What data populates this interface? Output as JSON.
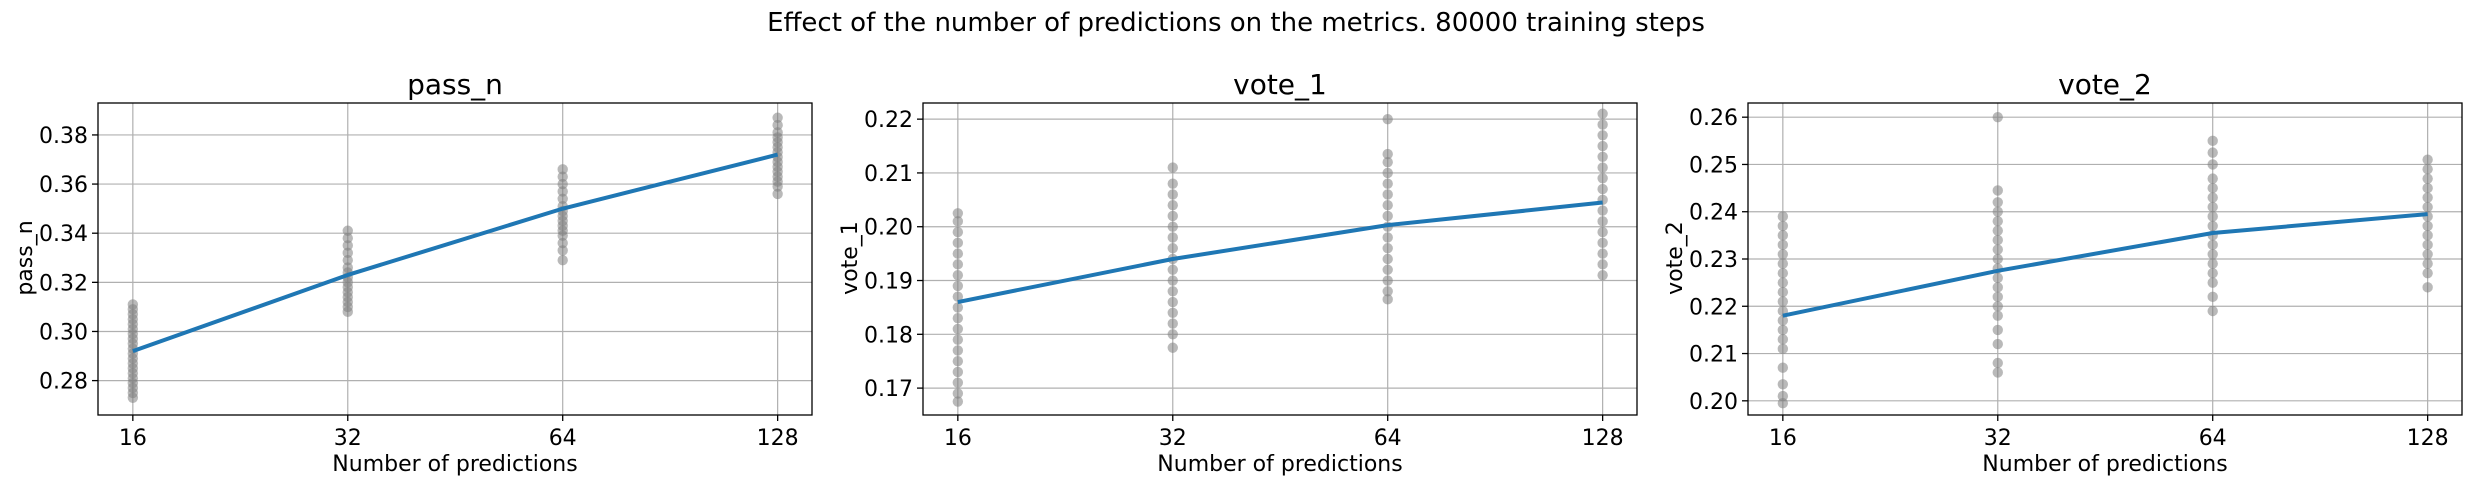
{
  "figure": {
    "suptitle": "Effect of the number of predictions on the metrics. 80000 training steps"
  },
  "colors": {
    "line": "#1f77b4",
    "points": "#808080",
    "grid": "#b0b0b0",
    "axes": "#000000"
  },
  "chart_data": [
    {
      "type": "line",
      "title": "pass_n",
      "xlabel": "Number of predictions",
      "ylabel": "pass_n",
      "x_scale": "log2",
      "x": [
        16,
        32,
        64,
        128
      ],
      "xtick_labels": [
        "16",
        "32",
        "64",
        "128"
      ],
      "xlim": [
        14.3,
        143
      ],
      "ylim": [
        0.266,
        0.393
      ],
      "yticks": [
        0.28,
        0.3,
        0.32,
        0.34,
        0.36,
        0.38
      ],
      "ytick_labels": [
        "0.28",
        "0.30",
        "0.32",
        "0.34",
        "0.36",
        "0.38"
      ],
      "grid": true,
      "series": [
        {
          "kind": "line",
          "values": [
            0.292,
            0.323,
            0.35,
            0.372
          ]
        },
        {
          "kind": "scatter",
          "points": [
            [
              16,
              0.311
            ],
            [
              16,
              0.309
            ],
            [
              16,
              0.307
            ],
            [
              16,
              0.305
            ],
            [
              16,
              0.303
            ],
            [
              16,
              0.301
            ],
            [
              16,
              0.299
            ],
            [
              16,
              0.297
            ],
            [
              16,
              0.295
            ],
            [
              16,
              0.293
            ],
            [
              16,
              0.291
            ],
            [
              16,
              0.289
            ],
            [
              16,
              0.287
            ],
            [
              16,
              0.285
            ],
            [
              16,
              0.283
            ],
            [
              16,
              0.281
            ],
            [
              16,
              0.279
            ],
            [
              16,
              0.277
            ],
            [
              16,
              0.275
            ],
            [
              16,
              0.273
            ],
            [
              32,
              0.341
            ],
            [
              32,
              0.338
            ],
            [
              32,
              0.335
            ],
            [
              32,
              0.332
            ],
            [
              32,
              0.329
            ],
            [
              32,
              0.326
            ],
            [
              32,
              0.324
            ],
            [
              32,
              0.322
            ],
            [
              32,
              0.32
            ],
            [
              32,
              0.318
            ],
            [
              32,
              0.316
            ],
            [
              32,
              0.314
            ],
            [
              32,
              0.312
            ],
            [
              32,
              0.31
            ],
            [
              32,
              0.308
            ],
            [
              64,
              0.366
            ],
            [
              64,
              0.363
            ],
            [
              64,
              0.36
            ],
            [
              64,
              0.357
            ],
            [
              64,
              0.354
            ],
            [
              64,
              0.351
            ],
            [
              64,
              0.349
            ],
            [
              64,
              0.347
            ],
            [
              64,
              0.345
            ],
            [
              64,
              0.343
            ],
            [
              64,
              0.341
            ],
            [
              64,
              0.339
            ],
            [
              64,
              0.336
            ],
            [
              64,
              0.333
            ],
            [
              64,
              0.329
            ],
            [
              128,
              0.387
            ],
            [
              128,
              0.384
            ],
            [
              128,
              0.381
            ],
            [
              128,
              0.379
            ],
            [
              128,
              0.377
            ],
            [
              128,
              0.375
            ],
            [
              128,
              0.373
            ],
            [
              128,
              0.371
            ],
            [
              128,
              0.369
            ],
            [
              128,
              0.367
            ],
            [
              128,
              0.365
            ],
            [
              128,
              0.363
            ],
            [
              128,
              0.361
            ],
            [
              128,
              0.359
            ],
            [
              128,
              0.356
            ]
          ]
        }
      ]
    },
    {
      "type": "line",
      "title": "vote_1",
      "xlabel": "Number of predictions",
      "ylabel": "vote_1",
      "x_scale": "log2",
      "x": [
        16,
        32,
        64,
        128
      ],
      "xtick_labels": [
        "16",
        "32",
        "64",
        "128"
      ],
      "xlim": [
        14.3,
        143
      ],
      "ylim": [
        0.165,
        0.223
      ],
      "yticks": [
        0.17,
        0.18,
        0.19,
        0.2,
        0.21,
        0.22
      ],
      "ytick_labels": [
        "0.17",
        "0.18",
        "0.19",
        "0.20",
        "0.21",
        "0.22"
      ],
      "grid": true,
      "series": [
        {
          "kind": "line",
          "values": [
            0.186,
            0.194,
            0.2003,
            0.2045
          ]
        },
        {
          "kind": "scatter",
          "points": [
            [
              16,
              0.2025
            ],
            [
              16,
              0.201
            ],
            [
              16,
              0.199
            ],
            [
              16,
              0.197
            ],
            [
              16,
              0.195
            ],
            [
              16,
              0.193
            ],
            [
              16,
              0.191
            ],
            [
              16,
              0.189
            ],
            [
              16,
              0.187
            ],
            [
              16,
              0.185
            ],
            [
              16,
              0.183
            ],
            [
              16,
              0.181
            ],
            [
              16,
              0.179
            ],
            [
              16,
              0.177
            ],
            [
              16,
              0.175
            ],
            [
              16,
              0.173
            ],
            [
              16,
              0.171
            ],
            [
              16,
              0.169
            ],
            [
              16,
              0.1675
            ],
            [
              32,
              0.211
            ],
            [
              32,
              0.208
            ],
            [
              32,
              0.206
            ],
            [
              32,
              0.204
            ],
            [
              32,
              0.202
            ],
            [
              32,
              0.2
            ],
            [
              32,
              0.198
            ],
            [
              32,
              0.196
            ],
            [
              32,
              0.194
            ],
            [
              32,
              0.192
            ],
            [
              32,
              0.19
            ],
            [
              32,
              0.188
            ],
            [
              32,
              0.186
            ],
            [
              32,
              0.184
            ],
            [
              32,
              0.182
            ],
            [
              32,
              0.18
            ],
            [
              32,
              0.1775
            ],
            [
              64,
              0.22
            ],
            [
              64,
              0.2135
            ],
            [
              64,
              0.212
            ],
            [
              64,
              0.21
            ],
            [
              64,
              0.208
            ],
            [
              64,
              0.206
            ],
            [
              64,
              0.204
            ],
            [
              64,
              0.202
            ],
            [
              64,
              0.2
            ],
            [
              64,
              0.198
            ],
            [
              64,
              0.196
            ],
            [
              64,
              0.194
            ],
            [
              64,
              0.192
            ],
            [
              64,
              0.19
            ],
            [
              64,
              0.188
            ],
            [
              64,
              0.1865
            ],
            [
              128,
              0.221
            ],
            [
              128,
              0.219
            ],
            [
              128,
              0.217
            ],
            [
              128,
              0.215
            ],
            [
              128,
              0.213
            ],
            [
              128,
              0.211
            ],
            [
              128,
              0.209
            ],
            [
              128,
              0.207
            ],
            [
              128,
              0.205
            ],
            [
              128,
              0.203
            ],
            [
              128,
              0.201
            ],
            [
              128,
              0.199
            ],
            [
              128,
              0.197
            ],
            [
              128,
              0.195
            ],
            [
              128,
              0.193
            ],
            [
              128,
              0.191
            ]
          ]
        }
      ]
    },
    {
      "type": "line",
      "title": "vote_2",
      "xlabel": "Number of predictions",
      "ylabel": "vote_2",
      "x_scale": "log2",
      "x": [
        16,
        32,
        64,
        128
      ],
      "xtick_labels": [
        "16",
        "32",
        "64",
        "128"
      ],
      "xlim": [
        14.3,
        143
      ],
      "ylim": [
        0.197,
        0.263
      ],
      "yticks": [
        0.2,
        0.21,
        0.22,
        0.23,
        0.24,
        0.25,
        0.26
      ],
      "ytick_labels": [
        "0.20",
        "0.21",
        "0.22",
        "0.23",
        "0.24",
        "0.25",
        "0.26"
      ],
      "grid": true,
      "series": [
        {
          "kind": "line",
          "values": [
            0.218,
            0.2275,
            0.2355,
            0.2395
          ]
        },
        {
          "kind": "scatter",
          "points": [
            [
              16,
              0.239
            ],
            [
              16,
              0.237
            ],
            [
              16,
              0.235
            ],
            [
              16,
              0.233
            ],
            [
              16,
              0.231
            ],
            [
              16,
              0.229
            ],
            [
              16,
              0.227
            ],
            [
              16,
              0.225
            ],
            [
              16,
              0.223
            ],
            [
              16,
              0.221
            ],
            [
              16,
              0.219
            ],
            [
              16,
              0.217
            ],
            [
              16,
              0.215
            ],
            [
              16,
              0.213
            ],
            [
              16,
              0.211
            ],
            [
              16,
              0.207
            ],
            [
              16,
              0.2035
            ],
            [
              16,
              0.201
            ],
            [
              16,
              0.1995
            ],
            [
              32,
              0.26
            ],
            [
              32,
              0.2445
            ],
            [
              32,
              0.242
            ],
            [
              32,
              0.24
            ],
            [
              32,
              0.238
            ],
            [
              32,
              0.236
            ],
            [
              32,
              0.234
            ],
            [
              32,
              0.232
            ],
            [
              32,
              0.23
            ],
            [
              32,
              0.228
            ],
            [
              32,
              0.226
            ],
            [
              32,
              0.224
            ],
            [
              32,
              0.222
            ],
            [
              32,
              0.22
            ],
            [
              32,
              0.218
            ],
            [
              32,
              0.215
            ],
            [
              32,
              0.212
            ],
            [
              32,
              0.208
            ],
            [
              32,
              0.206
            ],
            [
              64,
              0.255
            ],
            [
              64,
              0.2525
            ],
            [
              64,
              0.25
            ],
            [
              64,
              0.247
            ],
            [
              64,
              0.245
            ],
            [
              64,
              0.243
            ],
            [
              64,
              0.241
            ],
            [
              64,
              0.239
            ],
            [
              64,
              0.237
            ],
            [
              64,
              0.235
            ],
            [
              64,
              0.233
            ],
            [
              64,
              0.231
            ],
            [
              64,
              0.229
            ],
            [
              64,
              0.227
            ],
            [
              64,
              0.225
            ],
            [
              64,
              0.222
            ],
            [
              64,
              0.219
            ],
            [
              128,
              0.251
            ],
            [
              128,
              0.249
            ],
            [
              128,
              0.247
            ],
            [
              128,
              0.245
            ],
            [
              128,
              0.243
            ],
            [
              128,
              0.241
            ],
            [
              128,
              0.239
            ],
            [
              128,
              0.237
            ],
            [
              128,
              0.235
            ],
            [
              128,
              0.233
            ],
            [
              128,
              0.231
            ],
            [
              128,
              0.229
            ],
            [
              128,
              0.227
            ],
            [
              128,
              0.224
            ]
          ]
        }
      ]
    }
  ]
}
